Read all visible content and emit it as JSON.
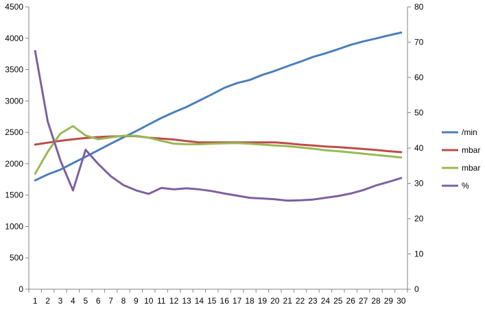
{
  "chart_data": {
    "type": "line",
    "title": "",
    "xlabel": "",
    "ylabel": "",
    "y2label": "",
    "categories": [
      "1",
      "2",
      "3",
      "4",
      "5",
      "6",
      "7",
      "8",
      "9",
      "10",
      "11",
      "12",
      "13",
      "14",
      "15",
      "16",
      "17",
      "18",
      "19",
      "20",
      "21",
      "22",
      "23",
      "24",
      "25",
      "26",
      "27",
      "28",
      "29",
      "30"
    ],
    "ylim": [
      0,
      4500
    ],
    "yticks": [
      0,
      500,
      1000,
      1500,
      2000,
      2500,
      3000,
      3500,
      4000,
      4500
    ],
    "y2lim": [
      0,
      80
    ],
    "y2ticks": [
      0,
      10,
      20,
      30,
      40,
      50,
      60,
      70,
      80
    ],
    "grid": false,
    "legend_position": "right",
    "series": [
      {
        "name": "/min",
        "axis": "left",
        "color": "#4a7ebb",
        "values": [
          1735,
          1830,
          1905,
          2010,
          2110,
          2215,
          2320,
          2420,
          2520,
          2625,
          2730,
          2820,
          2905,
          3005,
          3105,
          3210,
          3285,
          3335,
          3415,
          3480,
          3555,
          3625,
          3700,
          3760,
          3825,
          3895,
          3950,
          3995,
          4045,
          4090
        ]
      },
      {
        "name": "mbar",
        "axis": "left",
        "color": "#be4b48",
        "values": [
          2305,
          2335,
          2365,
          2390,
          2410,
          2425,
          2435,
          2440,
          2440,
          2415,
          2400,
          2385,
          2360,
          2340,
          2340,
          2340,
          2340,
          2340,
          2340,
          2340,
          2325,
          2305,
          2290,
          2275,
          2265,
          2250,
          2235,
          2220,
          2200,
          2185
        ]
      },
      {
        "name": "mbar",
        "axis": "left",
        "color": "#98b954",
        "values": [
          1840,
          2190,
          2480,
          2600,
          2450,
          2390,
          2420,
          2445,
          2445,
          2415,
          2365,
          2320,
          2310,
          2310,
          2320,
          2325,
          2330,
          2320,
          2305,
          2290,
          2280,
          2260,
          2240,
          2215,
          2200,
          2180,
          2160,
          2140,
          2120,
          2100
        ]
      },
      {
        "name": "%",
        "axis": "right",
        "color": "#7d60a0",
        "values": [
          67.5,
          47.5,
          36.5,
          28,
          39.5,
          35.5,
          32,
          29.5,
          28,
          27,
          28.7,
          28.3,
          28.6,
          28.3,
          27.8,
          27.1,
          26.5,
          25.9,
          25.7,
          25.5,
          25.1,
          25.2,
          25.4,
          25.9,
          26.4,
          27.1,
          28.1,
          29.4,
          30.4,
          31.5
        ]
      }
    ]
  }
}
